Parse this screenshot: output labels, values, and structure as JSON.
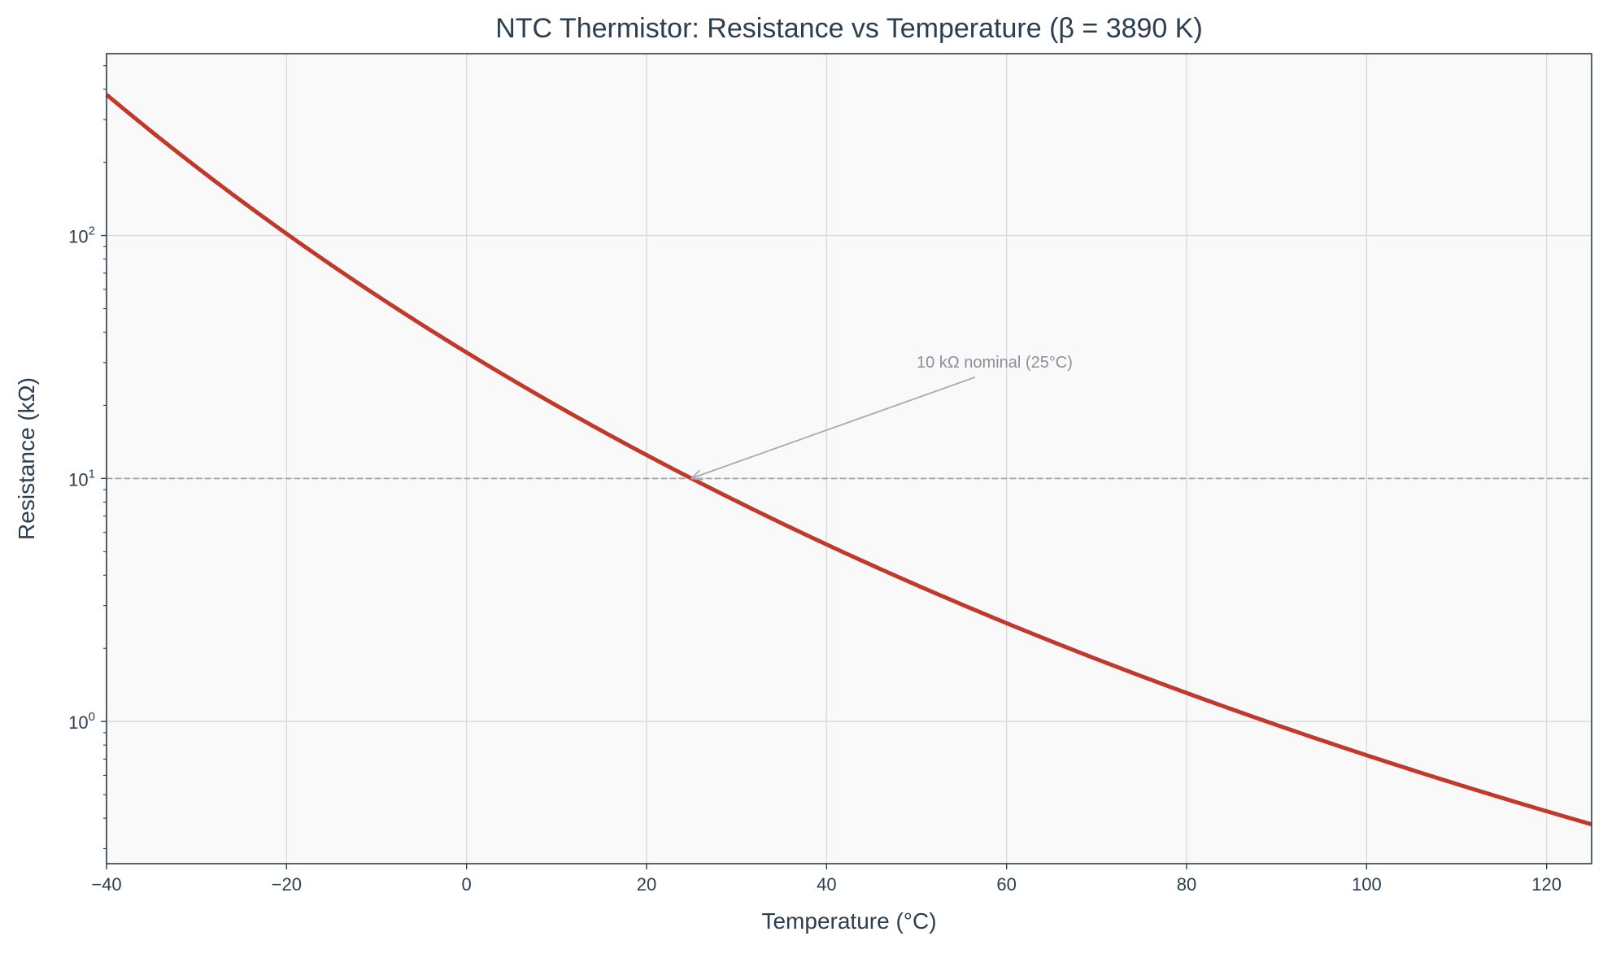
{
  "chart_data": {
    "type": "line",
    "title": "NTC Thermistor: Resistance vs Temperature (β = 3890 K)",
    "xlabel": "Temperature (°C)",
    "ylabel": "Resistance (kΩ)",
    "xlim": [
      -40,
      125
    ],
    "ylim": [
      0.26,
      560
    ],
    "yscale": "log",
    "grid": true,
    "x_ticks": [
      -40,
      -20,
      0,
      20,
      40,
      60,
      80,
      100,
      120
    ],
    "x_tick_labels": [
      "−40",
      "−20",
      "0",
      "20",
      "40",
      "60",
      "80",
      "100",
      "120"
    ],
    "y_ticks": [
      {
        "value": 1,
        "base": "10",
        "exp": "0"
      },
      {
        "value": 10,
        "base": "10",
        "exp": "1"
      },
      {
        "value": 100,
        "base": "10",
        "exp": "2"
      }
    ],
    "series": [
      {
        "name": "",
        "color": "#c0392b",
        "x": [
          -40,
          -35,
          -30,
          -25,
          -20,
          -15,
          -10,
          -5,
          0,
          5,
          10,
          15,
          20,
          25,
          30,
          35,
          40,
          45,
          50,
          55,
          60,
          65,
          70,
          75,
          80,
          85,
          90,
          95,
          100,
          105,
          110,
          115,
          120,
          125
        ],
        "y": [
          388.4,
          272.1,
          193.1,
          138.8,
          101.0,
          74.3,
          55.3,
          41.6,
          31.6,
          24.2,
          18.7,
          14.6,
          11.5,
          10.0,
          7.22,
          5.78,
          4.66,
          3.78,
          3.09,
          2.53,
          2.09,
          1.73,
          1.45,
          1.21,
          1.02,
          0.865,
          0.735,
          0.627,
          0.537,
          0.462,
          0.399,
          0.345,
          0.3,
          0.262
        ]
      }
    ],
    "reference_line": {
      "y": 10,
      "color": "#9aa0ab",
      "style": "dashed"
    },
    "annotation": {
      "text": "10 kΩ nominal (25°C)",
      "point": [
        25,
        10
      ],
      "text_pos": [
        50,
        30
      ],
      "color": "#8a9099"
    }
  },
  "colors": {
    "text": "#2c3e50",
    "plot_bg": "#f9f9f9",
    "grid": "#d9d9d9",
    "axis": "#2c3e50"
  }
}
